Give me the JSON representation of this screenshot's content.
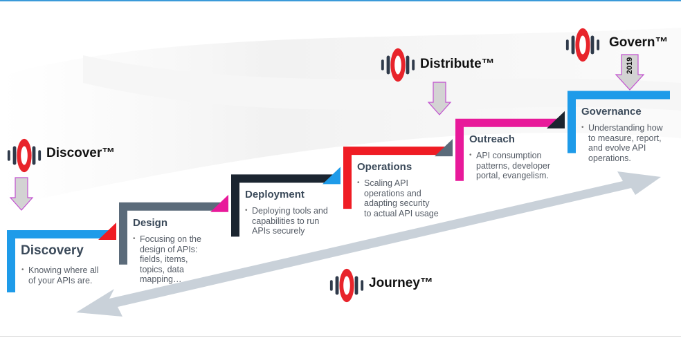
{
  "logos": {
    "discover": "Discover™",
    "distribute": "Distribute™",
    "govern": "Govern™",
    "journey": "Journey™"
  },
  "govern_year": "2019",
  "stages": [
    {
      "title": "Discovery",
      "color": "#1e9be9",
      "desc": "Knowing where all of your APIs are."
    },
    {
      "title": "Design",
      "color": "#5b6b7a",
      "desc": "Focusing on the design of APIs: fields, items, topics, data mapping…"
    },
    {
      "title": "Deployment",
      "color": "#1b2530",
      "desc": "Deploying tools and capabilities to run APIs securely"
    },
    {
      "title": "Operations",
      "color": "#ef1c24",
      "desc": "Scaling API operations and adapting security to actual API usage"
    },
    {
      "title": "Outreach",
      "color": "#e8199a",
      "desc": "API consumption patterns, developer portal, evangelism."
    },
    {
      "title": "Governance",
      "color": "#1e9be9",
      "desc": "Understanding how to measure, report, and evolve API operations."
    }
  ],
  "colors": {
    "logo_red": "#e8242b",
    "logo_dark": "#2f3a4a",
    "arrow_gray": "#c9d1d9",
    "down_arrow_fill": "#d3d3d3",
    "down_arrow_stroke": "#c24fd0"
  }
}
